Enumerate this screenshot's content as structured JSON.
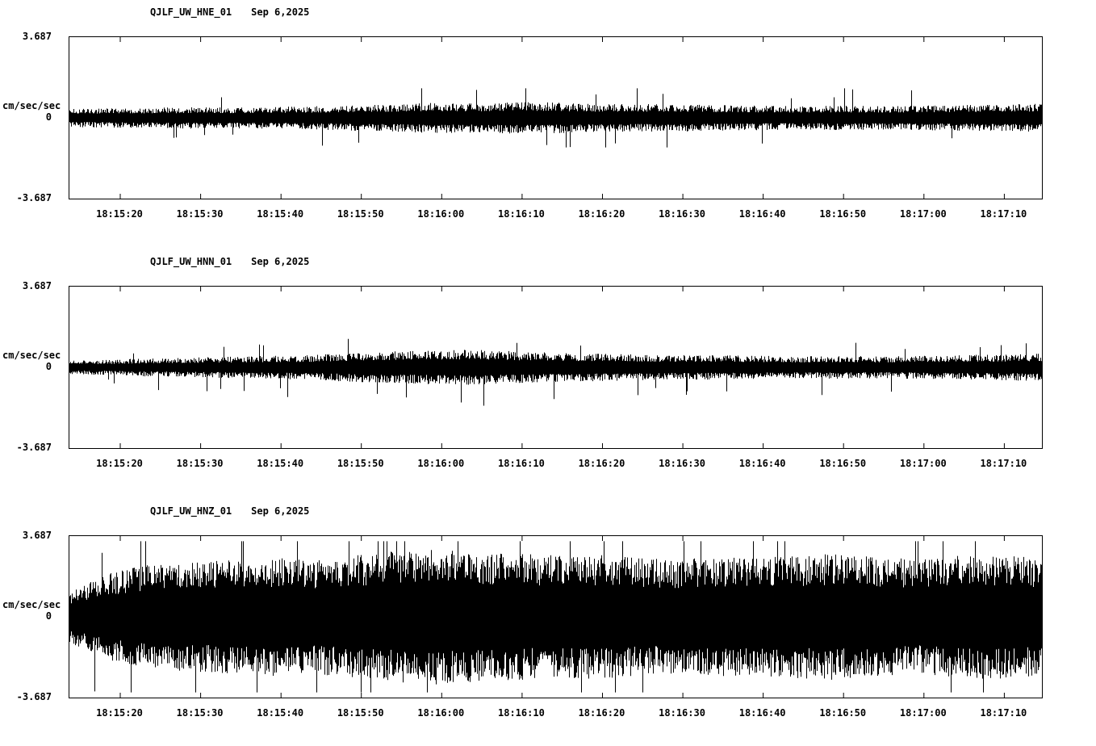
{
  "page": {
    "background": "#ffffff",
    "trace_color": "#000000",
    "axis_color": "#000000"
  },
  "chart_data": [
    {
      "type": "line",
      "station": "QJLF_UW_HNE_01",
      "date": "Sep 6,2025",
      "ylabel": "cm/sec/sec",
      "ylim": [
        -3.687,
        3.687
      ],
      "yticks": [
        "3.687",
        "0",
        "-3.687"
      ],
      "xticklabels": [
        "18:15:20",
        "18:15:30",
        "18:15:40",
        "18:15:50",
        "18:16:00",
        "18:16:10",
        "18:16:20",
        "18:16:30",
        "18:16:40",
        "18:16:50",
        "18:17:00",
        "18:17:10"
      ],
      "amplitude_envelope": [
        0.42,
        0.45,
        0.46,
        0.49,
        0.48,
        0.5,
        0.53,
        0.59,
        0.63,
        0.7,
        0.67,
        0.73,
        0.7,
        0.64,
        0.62,
        0.64,
        0.59,
        0.56,
        0.53,
        0.56,
        0.53,
        0.56,
        0.59,
        0.62,
        0.64
      ],
      "approx_peak_max": 1.35
    },
    {
      "type": "line",
      "station": "QJLF_UW_HNN_01",
      "date": "Sep 6,2025",
      "ylabel": "cm/sec/sec",
      "ylim": [
        -3.687,
        3.687
      ],
      "yticks": [
        "3.687",
        "0",
        "-3.687"
      ],
      "xticklabels": [
        "18:15:20",
        "18:15:30",
        "18:15:40",
        "18:15:50",
        "18:16:00",
        "18:16:10",
        "18:16:20",
        "18:16:30",
        "18:16:40",
        "18:16:50",
        "18:17:00",
        "18:17:10"
      ],
      "amplitude_envelope": [
        0.31,
        0.35,
        0.42,
        0.45,
        0.49,
        0.53,
        0.56,
        0.67,
        0.73,
        0.77,
        0.81,
        0.73,
        0.67,
        0.63,
        0.59,
        0.56,
        0.56,
        0.53,
        0.5,
        0.53,
        0.5,
        0.53,
        0.56,
        0.59,
        0.63
      ],
      "approx_peak_max": 1.75
    },
    {
      "type": "line",
      "station": "QJLF_UW_HNZ_01",
      "date": "Sep 6,2025",
      "ylabel": "cm/sec/sec",
      "ylim": [
        -3.687,
        3.687
      ],
      "yticks": [
        "3.687",
        "0",
        "-3.687"
      ],
      "xticklabels": [
        "18:15:20",
        "18:15:30",
        "18:15:40",
        "18:15:50",
        "18:16:00",
        "18:16:10",
        "18:16:20",
        "18:16:30",
        "18:16:40",
        "18:16:50",
        "18:17:00",
        "18:17:10"
      ],
      "amplitude_envelope": [
        1.2,
        2.0,
        2.4,
        2.5,
        2.6,
        2.7,
        2.6,
        2.8,
        3.0,
        3.1,
        3.0,
        2.9,
        2.8,
        2.85,
        2.7,
        2.6,
        2.75,
        2.7,
        2.8,
        2.9,
        2.75,
        2.6,
        2.8,
        2.85,
        2.7
      ],
      "approx_peak_max": 3.45
    }
  ]
}
